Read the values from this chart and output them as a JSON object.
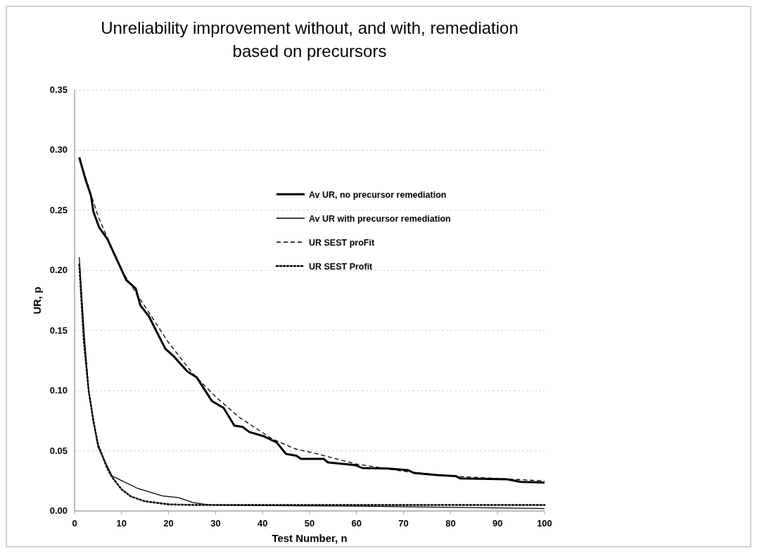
{
  "chart_data": {
    "type": "line",
    "title": "Unreliability improvement without, and with, remediation based on precursors",
    "xlabel": "Test Number, n",
    "ylabel": "UR, p",
    "xlim": [
      0,
      100
    ],
    "xticks": [
      0,
      10,
      20,
      30,
      40,
      50,
      60,
      70,
      80,
      90,
      100
    ],
    "ylim": [
      0,
      0.35
    ],
    "yticks": [
      {
        "value": 0,
        "label": "0.00"
      },
      {
        "value": 0.05,
        "label": "0.05"
      },
      {
        "value": 0.1,
        "label": "0.10"
      },
      {
        "value": 0.15,
        "label": "0.15"
      },
      {
        "value": 0.2,
        "label": "0.20"
      },
      {
        "value": 0.25,
        "label": "0.25"
      },
      {
        "value": 0.3,
        "label": "0.30"
      },
      {
        "value": 0.35,
        "label": "0.35"
      }
    ],
    "grid": "y",
    "legend": "top right",
    "marker": "none",
    "series": [
      {
        "name": "Av UR, no precursor remediation",
        "color": "#000000",
        "line_style": "solid",
        "x": [
          1,
          2.3,
          3.5,
          4,
          5.2,
          7,
          11,
          13,
          14,
          15.8,
          19.3,
          21,
          24,
          26,
          29.2,
          31.7,
          34,
          35.7,
          37.2,
          40.2,
          43,
          45,
          47.2,
          48.2,
          53,
          53.9,
          59.9,
          61.2,
          66.7,
          70.9,
          72.2,
          77.1,
          81.1,
          82.1,
          92,
          95,
          100
        ],
        "values": [
          0.294,
          0.276,
          0.262,
          0.249,
          0.236,
          0.226,
          0.192,
          0.185,
          0.171,
          0.162,
          0.135,
          0.129,
          0.116,
          0.111,
          0.0915,
          0.0857,
          0.071,
          0.07,
          0.0656,
          0.0622,
          0.057,
          0.0474,
          0.046,
          0.0433,
          0.0433,
          0.0404,
          0.038,
          0.0357,
          0.0353,
          0.034,
          0.0316,
          0.0298,
          0.029,
          0.027,
          0.0263,
          0.0242,
          0.0236
        ]
      },
      {
        "name": "Av UR with precursor remediation",
        "color": "#000000",
        "line_style": "solid",
        "x": [
          1,
          2,
          3,
          4,
          5,
          8,
          13.3,
          18.7,
          22.2,
          25.2,
          28.7,
          40,
          60,
          80,
          100
        ],
        "values": [
          0.211,
          0.15,
          0.1,
          0.075,
          0.053,
          0.029,
          0.019,
          0.0125,
          0.011,
          0.007,
          0.005,
          0.0045,
          0.004,
          0.003,
          0.002
        ]
      },
      {
        "name": "UR SEST proFit",
        "color": "#000000",
        "line_style": "dashed",
        "x": [
          1,
          5,
          10,
          15,
          20,
          25,
          30,
          35,
          42,
          47,
          50,
          55,
          60,
          70,
          80,
          90,
          100
        ],
        "values": [
          0.294,
          0.245,
          0.2,
          0.17,
          0.14,
          0.115,
          0.095,
          0.078,
          0.06,
          0.0515,
          0.049,
          0.044,
          0.039,
          0.033,
          0.029,
          0.027,
          0.025
        ]
      },
      {
        "name": "UR SEST Profit",
        "color": "#000000",
        "line_style": "dotted",
        "x": [
          1,
          2,
          3,
          4,
          5,
          6,
          7,
          8,
          10,
          12,
          15,
          20,
          25,
          30,
          100
        ],
        "values": [
          0.205,
          0.14,
          0.1,
          0.075,
          0.055,
          0.045,
          0.035,
          0.028,
          0.018,
          0.012,
          0.008,
          0.0055,
          0.005,
          0.005,
          0.005
        ]
      }
    ]
  }
}
